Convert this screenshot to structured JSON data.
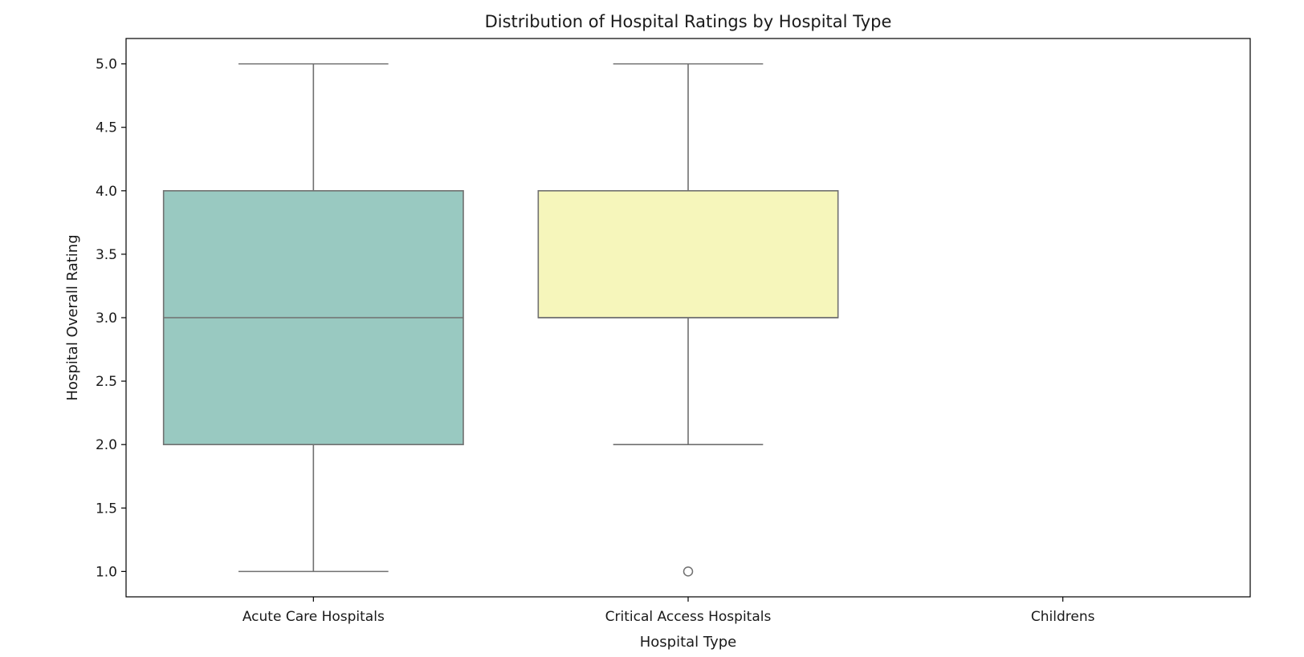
{
  "chart_data": {
    "type": "box",
    "title": "Distribution of Hospital Ratings by Hospital Type",
    "xlabel": "Hospital Type",
    "ylabel": "Hospital Overall Rating",
    "categories": [
      "Acute Care Hospitals",
      "Critical Access Hospitals",
      "Childrens"
    ],
    "ylim": [
      0.8,
      5.2
    ],
    "yticks": [
      1.0,
      1.5,
      2.0,
      2.5,
      3.0,
      3.5,
      4.0,
      4.5,
      5.0
    ],
    "ytick_labels": [
      "1.0",
      "1.5",
      "2.0",
      "2.5",
      "3.0",
      "3.5",
      "4.0",
      "4.5",
      "5.0"
    ],
    "grid": false,
    "boxes": [
      {
        "category": "Acute Care Hospitals",
        "whisker_low": 1.0,
        "q1": 2.0,
        "median": 3.0,
        "q3": 4.0,
        "whisker_high": 5.0,
        "outliers": [],
        "color": "#99c9c1"
      },
      {
        "category": "Critical Access Hospitals",
        "whisker_low": 2.0,
        "q1": 3.0,
        "median": 3.0,
        "q3": 4.0,
        "whisker_high": 5.0,
        "outliers": [
          1.0
        ],
        "color": "#f6f6bb"
      },
      {
        "category": "Childrens",
        "whisker_low": null,
        "q1": null,
        "median": null,
        "q3": null,
        "whisker_high": null,
        "outliers": [],
        "color": null
      }
    ],
    "line_color": "#707070"
  }
}
